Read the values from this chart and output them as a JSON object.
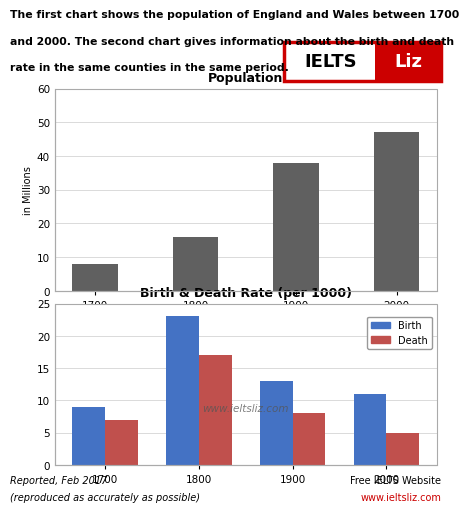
{
  "description_line1": "The first chart shows the population of England and Wales between 1700",
  "description_line2": "and 2000. The second chart gives information about the birth and death",
  "description_line3": "rate in the same counties in the same period.",
  "pop_title": "Population",
  "pop_years": [
    "1700",
    "1800",
    "1900",
    "2000"
  ],
  "pop_values": [
    8,
    16,
    38,
    47
  ],
  "pop_ylabel": "in Millions",
  "pop_ylim": [
    0,
    60
  ],
  "pop_yticks": [
    0,
    10,
    20,
    30,
    40,
    50,
    60
  ],
  "pop_bar_color": "#606060",
  "rate_title": "Birth & Death Rate (per 1000)",
  "rate_years": [
    "1700",
    "1800",
    "1900",
    "2000"
  ],
  "birth_values": [
    9,
    23,
    13,
    11
  ],
  "death_values": [
    7,
    17,
    8,
    5
  ],
  "rate_ylim": [
    0,
    25
  ],
  "rate_yticks": [
    0,
    5,
    10,
    15,
    20,
    25
  ],
  "birth_color": "#4472C4",
  "death_color": "#C0504D",
  "watermark": "www.ieltsliz.com",
  "footer_left1": "Reported, Feb 2017",
  "footer_left2": "(reproduced as accurately as possible)",
  "footer_right1": "Free IELTS Website",
  "footer_right2": "www.ieltsliz.com",
  "bg_color": "#FFFFFF",
  "chart_bg": "#FFFFFF",
  "border_color": "#aaaaaa",
  "ielts_red": "#CC0000"
}
